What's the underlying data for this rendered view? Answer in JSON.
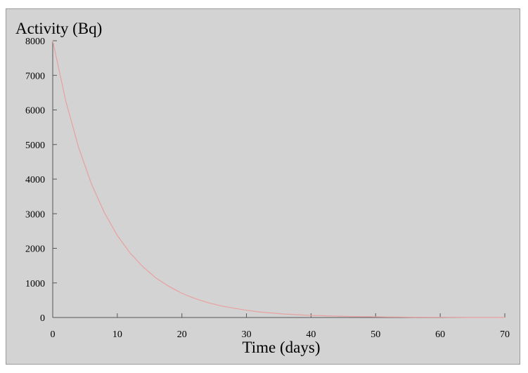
{
  "chart_data": {
    "type": "line",
    "title": "",
    "xlabel": "Time (days)",
    "ylabel": "Activity (Bq)",
    "xlim": [
      0,
      70
    ],
    "ylim": [
      0,
      8000
    ],
    "x_ticks": [
      0,
      10,
      20,
      30,
      40,
      50,
      60,
      70
    ],
    "y_ticks": [
      0,
      1000,
      2000,
      3000,
      4000,
      5000,
      6000,
      7000,
      8000
    ],
    "grid": false,
    "legend": "none",
    "series": [
      {
        "color": "#e8a0a0",
        "x": [
          0,
          2,
          4,
          6,
          8,
          10,
          12,
          14,
          16,
          18,
          20,
          22,
          24,
          26,
          28,
          30,
          32,
          34,
          36,
          38,
          40,
          42,
          44,
          46,
          48,
          50,
          52,
          54,
          56,
          58,
          60,
          62,
          64,
          66,
          68,
          70
        ],
        "y": [
          8000,
          6270,
          4920,
          3860,
          3030,
          2370,
          1860,
          1460,
          1140,
          900,
          700,
          550,
          430,
          340,
          270,
          210,
          160,
          130,
          100,
          80,
          60,
          50,
          40,
          30,
          25,
          20,
          15,
          12,
          9,
          7,
          6,
          4,
          3,
          3,
          2,
          2
        ]
      }
    ]
  }
}
